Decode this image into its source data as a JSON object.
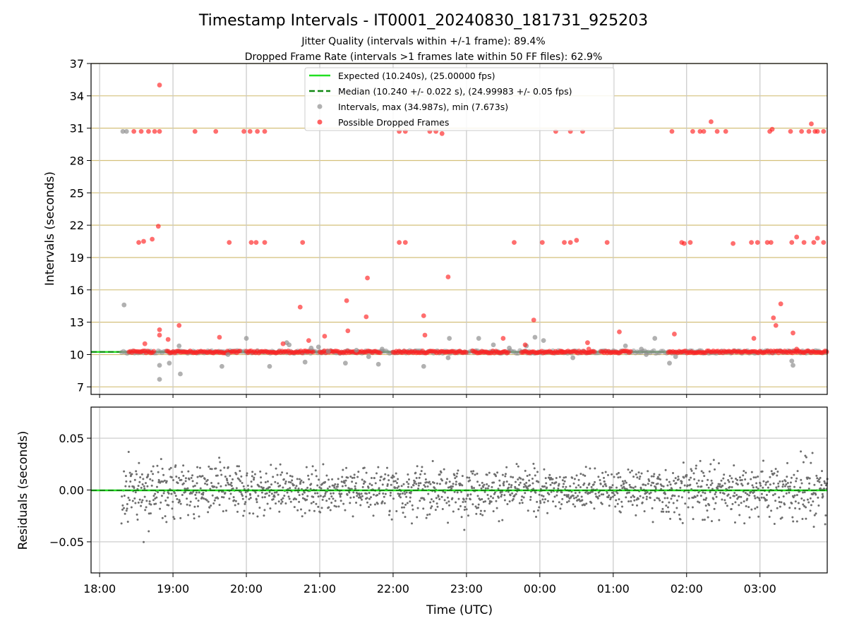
{
  "chart_data": [
    {
      "type": "scatter",
      "title": "Timestamp Intervals - IT0001_20240830_181731_925203",
      "subtitle_1": "Jitter Quality (intervals within +/-1 frame): 89.4%",
      "subtitle_2": "Dropped Frame Rate (intervals >1 frames late within 50 FF files): 62.9%",
      "ylabel": "Intervals (seconds)",
      "ylim": [
        6.3,
        37
      ],
      "yticks": [
        7,
        10,
        13,
        16,
        19,
        22,
        25,
        28,
        31,
        34,
        37
      ],
      "xlim": [
        "17:53",
        "03:55"
      ],
      "grid": true,
      "legend_position": "top-center",
      "legend": {
        "expected": "Expected (10.240s), (25.00000 fps)",
        "median": "Median (10.240 +/- 0.022 s), (24.99983 +/- 0.05 fps)",
        "intervals": "Intervals, max (34.987s), min (7.673s)",
        "dropped": "Possible Dropped Frames"
      },
      "expected_interval": 10.24,
      "median_interval": 10.24,
      "colors": {
        "expected": "#22e022",
        "median": "#118811",
        "intervals": "#909090",
        "dropped": "#ff2020",
        "hgrid": "#d4c07a",
        "vgrid": "#c8c8c8"
      },
      "series": [
        {
          "name": "Intervals, max (34.987s), min (7.673s)",
          "points": [
            [
              "18:19",
              30.7
            ],
            [
              "18:22",
              30.7
            ],
            [
              "18:20",
              14.6
            ],
            [
              "18:49",
              7.7
            ],
            [
              "18:49",
              9.0
            ],
            [
              "18:57",
              9.2
            ],
            [
              "19:06",
              8.2
            ],
            [
              "19:05",
              10.8
            ],
            [
              "19:40",
              8.9
            ],
            [
              "19:45",
              10.0
            ],
            [
              "20:00",
              11.5
            ],
            [
              "20:19",
              8.9
            ],
            [
              "20:33",
              11.1
            ],
            [
              "20:35",
              10.9
            ],
            [
              "20:48",
              9.3
            ],
            [
              "20:53",
              10.6
            ],
            [
              "20:59",
              10.7
            ],
            [
              "21:07",
              10.3
            ],
            [
              "21:21",
              9.2
            ],
            [
              "21:30",
              10.4
            ],
            [
              "21:40",
              9.8
            ],
            [
              "21:48",
              9.1
            ],
            [
              "21:51",
              10.5
            ],
            [
              "22:25",
              8.9
            ],
            [
              "22:45",
              9.7
            ],
            [
              "22:46",
              11.5
            ],
            [
              "23:10",
              11.5
            ],
            [
              "23:22",
              10.9
            ],
            [
              "23:35",
              10.6
            ],
            [
              "23:49",
              10.8
            ],
            [
              "23:56",
              11.6
            ],
            [
              "00:03",
              11.3
            ],
            [
              "00:27",
              9.7
            ],
            [
              "01:10",
              10.8
            ],
            [
              "01:23",
              10.5
            ],
            [
              "01:27",
              10.0
            ],
            [
              "01:34",
              11.5
            ],
            [
              "01:46",
              9.2
            ],
            [
              "01:51",
              9.8
            ],
            [
              "03:27",
              9.0
            ],
            [
              "03:26",
              9.4
            ]
          ]
        },
        {
          "name": "Possible Dropped Frames",
          "points": [
            [
              "18:28",
              30.7
            ],
            [
              "18:34",
              30.7
            ],
            [
              "18:40",
              30.7
            ],
            [
              "18:45",
              30.7
            ],
            [
              "18:49",
              30.7
            ],
            [
              "18:32",
              20.4
            ],
            [
              "18:36",
              20.5
            ],
            [
              "18:43",
              20.7
            ],
            [
              "18:48",
              21.9
            ],
            [
              "18:49",
              35.0
            ],
            [
              "18:49",
              12.3
            ],
            [
              "18:49",
              11.8
            ],
            [
              "18:37",
              11.0
            ],
            [
              "18:56",
              11.4
            ],
            [
              "19:05",
              12.7
            ],
            [
              "19:18",
              30.7
            ],
            [
              "19:35",
              30.7
            ],
            [
              "19:38",
              11.6
            ],
            [
              "19:46",
              20.4
            ],
            [
              "19:58",
              30.7
            ],
            [
              "20:03",
              30.7
            ],
            [
              "20:09",
              30.7
            ],
            [
              "20:15",
              30.7
            ],
            [
              "20:04",
              20.4
            ],
            [
              "20:08",
              20.4
            ],
            [
              "20:15",
              20.4
            ],
            [
              "20:30",
              11.0
            ],
            [
              "20:44",
              14.4
            ],
            [
              "20:46",
              20.4
            ],
            [
              "20:51",
              11.3
            ],
            [
              "21:04",
              11.7
            ],
            [
              "21:22",
              15.0
            ],
            [
              "21:23",
              12.2
            ],
            [
              "21:38",
              13.5
            ],
            [
              "21:39",
              17.1
            ],
            [
              "22:05",
              30.7
            ],
            [
              "22:10",
              30.7
            ],
            [
              "22:05",
              20.4
            ],
            [
              "22:10",
              20.4
            ],
            [
              "22:25",
              13.6
            ],
            [
              "22:26",
              11.8
            ],
            [
              "22:30",
              30.7
            ],
            [
              "22:35",
              30.7
            ],
            [
              "22:40",
              30.5
            ],
            [
              "22:45",
              17.2
            ],
            [
              "23:30",
              11.5
            ],
            [
              "23:39",
              20.4
            ],
            [
              "23:48",
              10.9
            ],
            [
              "23:55",
              13.2
            ],
            [
              "00:18",
              10.2
            ],
            [
              "00:02",
              20.4
            ],
            [
              "00:13",
              30.7
            ],
            [
              "00:20",
              20.4
            ],
            [
              "00:25",
              20.4
            ],
            [
              "00:30",
              20.6
            ],
            [
              "00:25",
              30.7
            ],
            [
              "00:35",
              30.7
            ],
            [
              "00:39",
              11.1
            ],
            [
              "00:55",
              20.4
            ],
            [
              "00:40",
              10.5
            ],
            [
              "01:05",
              12.1
            ],
            [
              "01:48",
              30.7
            ],
            [
              "01:50",
              11.9
            ],
            [
              "01:56",
              20.4
            ],
            [
              "01:58",
              20.3
            ],
            [
              "02:03",
              20.4
            ],
            [
              "02:05",
              30.7
            ],
            [
              "02:11",
              30.7
            ],
            [
              "02:14",
              30.7
            ],
            [
              "02:20",
              31.6
            ],
            [
              "02:25",
              30.7
            ],
            [
              "02:32",
              30.7
            ],
            [
              "02:38",
              20.3
            ],
            [
              "02:53",
              20.4
            ],
            [
              "02:58",
              20.4
            ],
            [
              "02:55",
              11.5
            ],
            [
              "03:06",
              20.4
            ],
            [
              "03:09",
              20.4
            ],
            [
              "03:11",
              13.4
            ],
            [
              "03:13",
              12.7
            ],
            [
              "03:17",
              14.7
            ],
            [
              "03:25",
              30.7
            ],
            [
              "03:34",
              30.7
            ],
            [
              "03:40",
              30.7
            ],
            [
              "03:45",
              30.7
            ],
            [
              "03:42",
              31.4
            ],
            [
              "03:47",
              30.7
            ],
            [
              "03:52",
              30.7
            ],
            [
              "03:26",
              20.4
            ],
            [
              "03:30",
              20.9
            ],
            [
              "03:36",
              20.4
            ],
            [
              "03:44",
              20.4
            ],
            [
              "03:47",
              20.8
            ],
            [
              "03:52",
              20.4
            ],
            [
              "03:27",
              12.0
            ],
            [
              "03:30",
              10.5
            ],
            [
              "03:08",
              30.7
            ],
            [
              "03:10",
              30.9
            ]
          ]
        }
      ]
    },
    {
      "type": "scatter",
      "ylabel": "Residuals (seconds)",
      "xlabel": "Time (UTC)",
      "ylim": [
        -0.08,
        0.08
      ],
      "yticks": [
        -0.05,
        0.0,
        0.05
      ],
      "ytick_labels": [
        "−0.05",
        "0.00",
        "0.05"
      ],
      "xticks": [
        "18:00",
        "19:00",
        "20:00",
        "21:00",
        "22:00",
        "23:00",
        "00:00",
        "01:00",
        "02:00",
        "03:00"
      ],
      "xlim": [
        "17:53",
        "03:55"
      ],
      "residuals": {
        "start": "18:18",
        "end": "03:55",
        "count": 1700,
        "spread_profile": [
          [
            "18:18",
            0.024
          ],
          [
            "19:00",
            0.022
          ],
          [
            "20:00",
            0.017
          ],
          [
            "21:00",
            0.013
          ],
          [
            "22:00",
            0.018
          ],
          [
            "23:00",
            0.017
          ],
          [
            "00:00",
            0.014
          ],
          [
            "01:00",
            0.013
          ],
          [
            "02:00",
            0.02
          ],
          [
            "03:00",
            0.017
          ],
          [
            "03:55",
            0.022
          ]
        ],
        "clip": 0.08
      },
      "colors": {
        "points": "#6e6e6e",
        "zero": "#22e022"
      }
    }
  ]
}
